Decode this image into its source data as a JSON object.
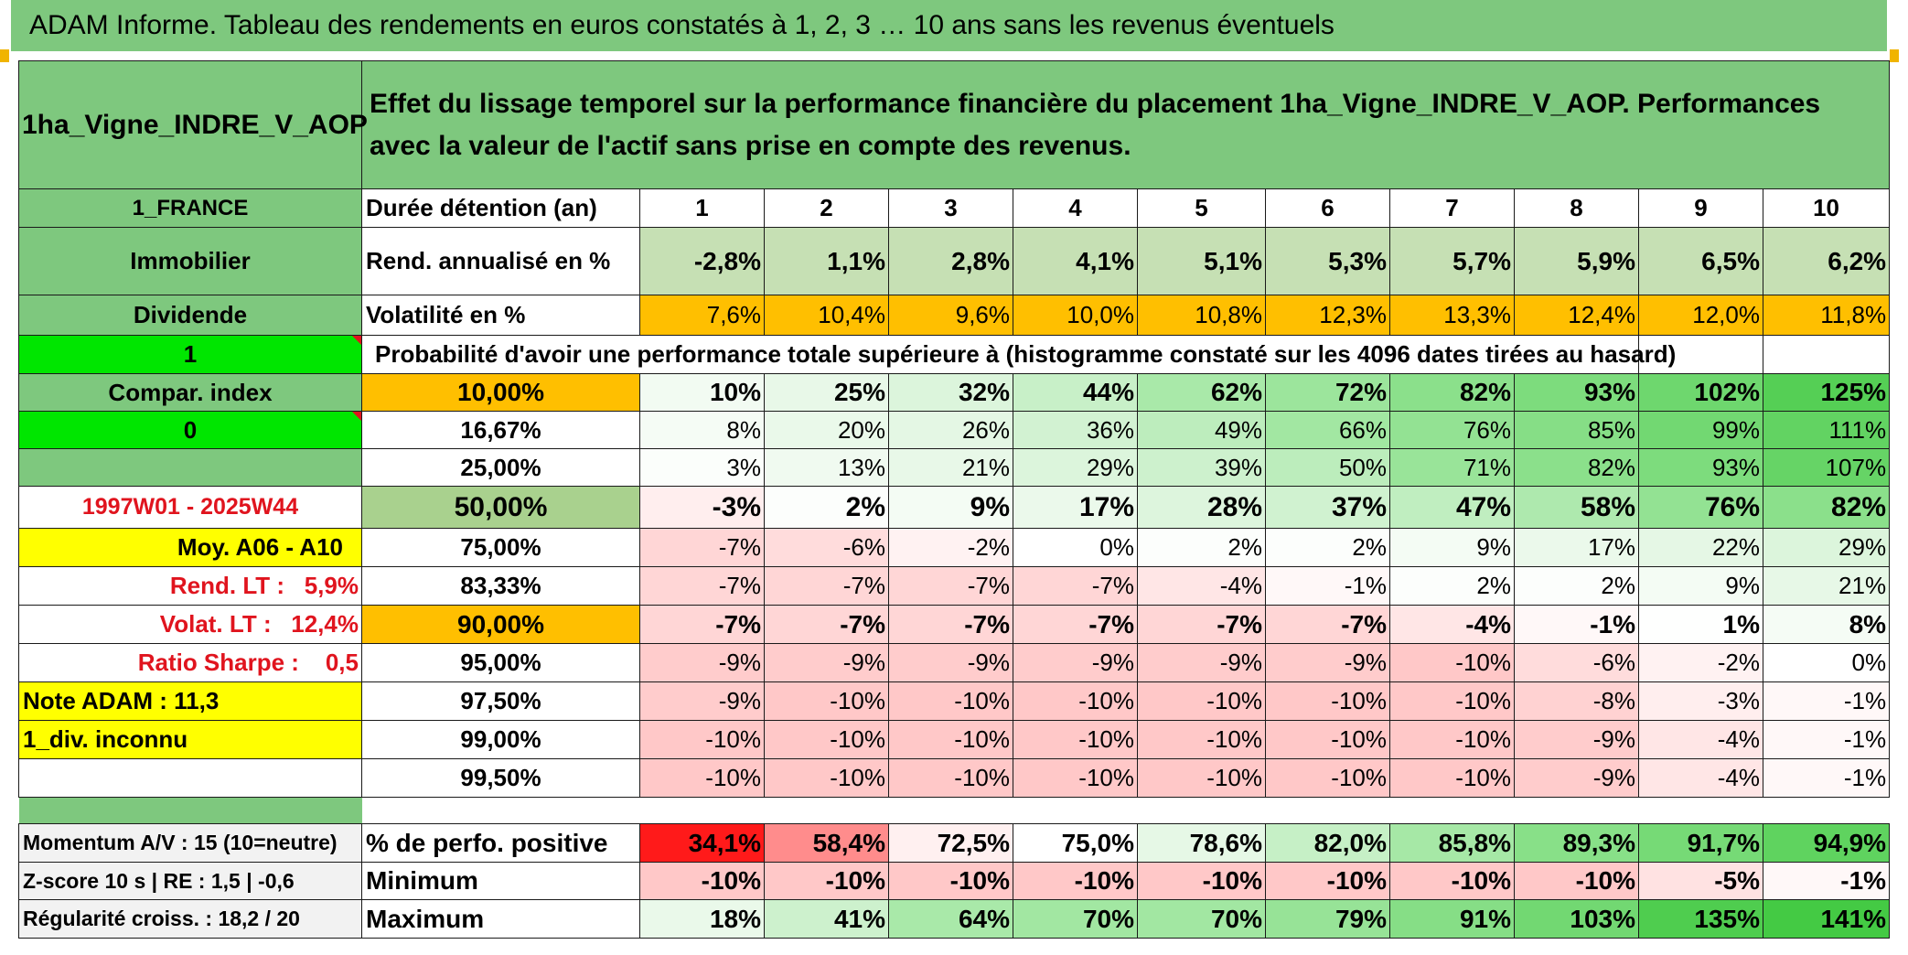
{
  "title": "ADAM Informe. Tableau des rendements en euros constatés à 1, 2, 3 … 10 ans sans les revenus éventuels",
  "asset_name": "1ha_Vigne_INDRE_V_AOP",
  "header_text": "Effet du lissage temporel sur la performance financière du placement 1ha_Vigne_INDRE_V_AOP. Performances avec la valeur de l'actif sans prise en compte des revenus.",
  "colors": {
    "header_green": "#7ec87e",
    "rend_green": "#c6e0b4",
    "orange": "#ffbf00",
    "yellow": "#ffff00",
    "bright_green": "#00e600",
    "red_text": "#e0141e"
  },
  "left_labels": {
    "country": "1_FRANCE",
    "category": "Immobilier",
    "dividend": "Dividende",
    "one": "1",
    "compar_index": "Compar. index",
    "zero": "0",
    "blank_row": "",
    "period": "1997W01 - 2025W44",
    "moy": "Moy. A06 - A10",
    "rend_lt": "Rend. LT :   5,9%",
    "volat_lt": "Volat. LT :   12,4%",
    "sharpe": "Ratio Sharpe :    0,5",
    "note": "Note ADAM : 11,3",
    "div": "1_div. inconnu",
    "momentum": "Momentum A/V : 15 (10=neutre)",
    "zscore": "Z-score 10 s | RE : 1,5 | -0,6",
    "regularite": "Régularité croiss. : 18,2 / 20"
  },
  "duration_row": {
    "label": "Durée détention (an)",
    "years": [
      "1",
      "2",
      "3",
      "4",
      "5",
      "6",
      "7",
      "8",
      "9",
      "10"
    ]
  },
  "rend_row": {
    "label": "Rend. annualisé en %",
    "values": [
      "-2,8%",
      "1,1%",
      "2,8%",
      "4,1%",
      "5,1%",
      "5,3%",
      "5,7%",
      "5,9%",
      "6,5%",
      "6,2%"
    ]
  },
  "vol_row": {
    "label": "Volatilité en %",
    "values": [
      "7,6%",
      "10,4%",
      "9,6%",
      "10,0%",
      "10,8%",
      "12,3%",
      "13,3%",
      "12,4%",
      "12,0%",
      "11,8%"
    ]
  },
  "probability_caption": "Probabilité d'avoir une performance totale supérieure à (histogramme constaté sur les 4096 dates tirées au hasard)",
  "prob_rows": [
    {
      "label": "10,00%",
      "bold": true,
      "values": [
        "10%",
        "25%",
        "32%",
        "44%",
        "62%",
        "72%",
        "82%",
        "93%",
        "102%",
        "125%"
      ],
      "colors": [
        "#f2fbf2",
        "#e8f8e8",
        "#dcf5dc",
        "#c8f0c8",
        "#a9e9a9",
        "#9ce59c",
        "#8be08b",
        "#7ddc7d",
        "#6ed76e",
        "#55cf55"
      ]
    },
    {
      "label": "16,67%",
      "bold": false,
      "values": [
        "8%",
        "20%",
        "26%",
        "36%",
        "49%",
        "66%",
        "76%",
        "85%",
        "99%",
        "111%"
      ],
      "colors": [
        "#f5fcf5",
        "#eaf9ea",
        "#e4f7e4",
        "#d2f2d2",
        "#bdedbd",
        "#a2e7a2",
        "#93e293",
        "#86de86",
        "#72d872",
        "#62d362"
      ]
    },
    {
      "label": "25,00%",
      "bold": false,
      "values": [
        "3%",
        "13%",
        "21%",
        "29%",
        "39%",
        "50%",
        "71%",
        "82%",
        "93%",
        "107%"
      ],
      "colors": [
        "#fbfefb",
        "#f0faf0",
        "#e8f8e8",
        "#dcf5dc",
        "#cdf1cd",
        "#bcedbc",
        "#99e499",
        "#8be08b",
        "#7ddc7d",
        "#66d466"
      ]
    },
    {
      "label": "50,00%",
      "bold": true,
      "values": [
        "-3%",
        "2%",
        "9%",
        "17%",
        "28%",
        "37%",
        "47%",
        "58%",
        "76%",
        "82%"
      ],
      "colors": [
        "#ffeeee",
        "#fcfefc",
        "#f4fcf4",
        "#ebf9eb",
        "#ddf5dd",
        "#d0f2d0",
        "#c0eec0",
        "#aee9ae",
        "#93e293",
        "#8be08b"
      ]
    },
    {
      "label": "75,00%",
      "bold": false,
      "values": [
        "-7%",
        "-6%",
        "-2%",
        "0%",
        "2%",
        "2%",
        "9%",
        "17%",
        "22%",
        "29%"
      ],
      "colors": [
        "#ffd6d6",
        "#ffdcdc",
        "#fff2f2",
        "#ffffff",
        "#fcfefc",
        "#fcfefc",
        "#f4fcf4",
        "#ebf9eb",
        "#e5f7e5",
        "#dcf5dc"
      ]
    },
    {
      "label": "83,33%",
      "bold": false,
      "values": [
        "-7%",
        "-7%",
        "-7%",
        "-7%",
        "-4%",
        "-1%",
        "2%",
        "2%",
        "9%",
        "21%"
      ],
      "colors": [
        "#ffd6d6",
        "#ffd6d6",
        "#ffd6d6",
        "#ffd6d6",
        "#ffe6e6",
        "#fff8f8",
        "#fcfefc",
        "#fcfefc",
        "#f4fcf4",
        "#e7f8e7"
      ]
    },
    {
      "label": "90,00%",
      "bold": true,
      "values": [
        "-7%",
        "-7%",
        "-7%",
        "-7%",
        "-7%",
        "-7%",
        "-4%",
        "-1%",
        "1%",
        "8%"
      ],
      "colors": [
        "#ffd6d6",
        "#ffd6d6",
        "#ffd6d6",
        "#ffd6d6",
        "#ffd6d6",
        "#ffd6d6",
        "#ffe6e6",
        "#fff8f8",
        "#fefffe",
        "#f5fcf5"
      ]
    },
    {
      "label": "95,00%",
      "bold": false,
      "values": [
        "-9%",
        "-9%",
        "-9%",
        "-9%",
        "-9%",
        "-9%",
        "-10%",
        "-6%",
        "-2%",
        "0%"
      ],
      "colors": [
        "#ffcccc",
        "#ffcccc",
        "#ffcccc",
        "#ffcccc",
        "#ffcccc",
        "#ffcccc",
        "#ffc8c8",
        "#ffdcdc",
        "#fff2f2",
        "#ffffff"
      ]
    },
    {
      "label": "97,50%",
      "bold": false,
      "values": [
        "-9%",
        "-10%",
        "-10%",
        "-10%",
        "-10%",
        "-10%",
        "-10%",
        "-8%",
        "-3%",
        "-1%"
      ],
      "colors": [
        "#ffcccc",
        "#ffc8c8",
        "#ffc8c8",
        "#ffc8c8",
        "#ffc8c8",
        "#ffc8c8",
        "#ffc8c8",
        "#ffd2d2",
        "#ffeeee",
        "#fff8f8"
      ]
    },
    {
      "label": "99,00%",
      "bold": false,
      "values": [
        "-10%",
        "-10%",
        "-10%",
        "-10%",
        "-10%",
        "-10%",
        "-10%",
        "-9%",
        "-4%",
        "-1%"
      ],
      "colors": [
        "#ffc8c8",
        "#ffc8c8",
        "#ffc8c8",
        "#ffc8c8",
        "#ffc8c8",
        "#ffc8c8",
        "#ffc8c8",
        "#ffcccc",
        "#ffe6e6",
        "#fff8f8"
      ]
    },
    {
      "label": "99,50%",
      "bold": false,
      "values": [
        "-10%",
        "-10%",
        "-10%",
        "-10%",
        "-10%",
        "-10%",
        "-10%",
        "-9%",
        "-4%",
        "-1%"
      ],
      "colors": [
        "#ffc8c8",
        "#ffc8c8",
        "#ffc8c8",
        "#ffc8c8",
        "#ffc8c8",
        "#ffc8c8",
        "#ffc8c8",
        "#ffcccc",
        "#ffe6e6",
        "#fff8f8"
      ]
    }
  ],
  "bottom_rows": [
    {
      "label": "% de perfo. positive",
      "values": [
        "34,1%",
        "58,4%",
        "72,5%",
        "75,0%",
        "78,6%",
        "82,0%",
        "85,8%",
        "89,3%",
        "91,7%",
        "94,9%"
      ],
      "colors": [
        "#ff1a1a",
        "#ff8c8c",
        "#fff0f0",
        "#ffffff",
        "#e6f8e6",
        "#c6f0c6",
        "#a6e8a6",
        "#88e088",
        "#76da76",
        "#5fd35f"
      ]
    },
    {
      "label": "Minimum",
      "values": [
        "-10%",
        "-10%",
        "-10%",
        "-10%",
        "-10%",
        "-10%",
        "-10%",
        "-10%",
        "-5%",
        "-1%"
      ],
      "colors": [
        "#ffc8c8",
        "#ffc8c8",
        "#ffc8c8",
        "#ffc8c8",
        "#ffc8c8",
        "#ffc8c8",
        "#ffc8c8",
        "#ffc8c8",
        "#ffe2e2",
        "#fff8f8"
      ]
    },
    {
      "label": "Maximum",
      "values": [
        "18%",
        "41%",
        "64%",
        "70%",
        "70%",
        "79%",
        "91%",
        "103%",
        "135%",
        "141%"
      ],
      "colors": [
        "#eaf9ea",
        "#cdf1cd",
        "#a9e9a9",
        "#a2e7a2",
        "#a2e7a2",
        "#97e397",
        "#86de86",
        "#72d872",
        "#4fcd4f",
        "#44ca44"
      ]
    }
  ]
}
